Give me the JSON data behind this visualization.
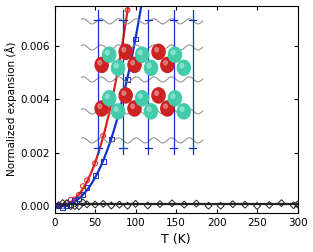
{
  "title": "",
  "xlabel": "T (K)",
  "ylabel": "Normalized expansion (Å)",
  "xlim": [
    0,
    300
  ],
  "ylim": [
    -0.00025,
    0.0075
  ],
  "yticks": [
    0.0,
    0.002,
    0.004,
    0.006
  ],
  "xticks": [
    0,
    50,
    100,
    150,
    200,
    250,
    300
  ],
  "red_color": "#dd2020",
  "blue_color": "#1133cc",
  "black_color": "#222222",
  "line_width": 1.6,
  "marker_size": 3.5,
  "bg_color": "#ffffff",
  "red_scale": 7.6e-08,
  "red_exp": 2.55,
  "blue_scale": 5e-08,
  "blue_exp": 2.55,
  "black_val": 7e-05
}
